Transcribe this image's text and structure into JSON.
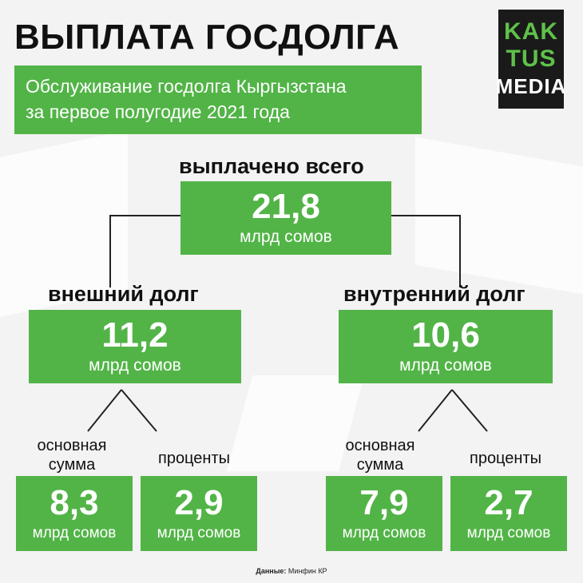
{
  "title": "ВЫПЛАТА ГОСДОЛГА",
  "logo": {
    "line1": "KAK",
    "line2": "TUS",
    "line3": "MEDIA"
  },
  "subtitle": {
    "line1": "Обслуживание госдолга Кыргызстана",
    "line2": "за первое полугодие 2021 года"
  },
  "unit": "млрд сомов",
  "total": {
    "label": "выплачено всего",
    "value": "21,8"
  },
  "external": {
    "label": "внешний долг",
    "value": "11,2",
    "principal": {
      "label_line1": "основная",
      "label_line2": "сумма",
      "value": "8,3"
    },
    "interest": {
      "label": "проценты",
      "value": "2,9"
    }
  },
  "internal": {
    "label": "внутренний долг",
    "value": "10,6",
    "principal": {
      "label_line1": "основная",
      "label_line2": "сумма",
      "value": "7,9"
    },
    "interest": {
      "label": "проценты",
      "value": "2,7"
    }
  },
  "source": {
    "label": "Данные:",
    "value": "Минфин КР"
  },
  "colors": {
    "green": "#52b447",
    "logo_green": "#5fc14a",
    "text": "#111111"
  }
}
